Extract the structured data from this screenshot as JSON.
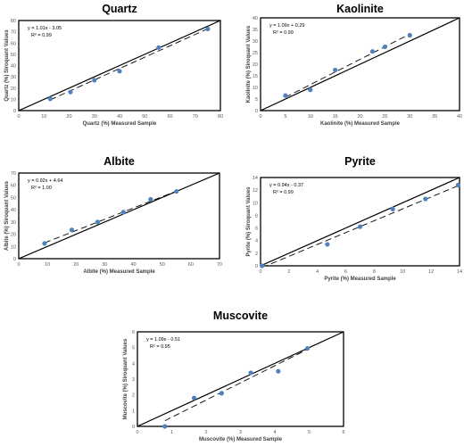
{
  "chart_data": [
    {
      "type": "scatter",
      "title": "Quartz",
      "xlabel": "Quartz (%) Measured Sample",
      "ylabel": "Quartz (%) Siroquant Values",
      "xlim": [
        0,
        80
      ],
      "ylim": [
        0,
        80
      ],
      "xticks": [
        0,
        10,
        20,
        30,
        40,
        50,
        60,
        70,
        80
      ],
      "yticks": [
        0,
        10,
        20,
        30,
        40,
        50,
        60,
        70,
        80
      ],
      "equation": "y = 1.01x - 3.05",
      "r2_label": "R² = 0.99",
      "trendline": {
        "slope": 1.01,
        "intercept": -3.05
      },
      "points": [
        {
          "x": 12.5,
          "y": 10.5
        },
        {
          "x": 20.5,
          "y": 16.5
        },
        {
          "x": 30,
          "y": 27
        },
        {
          "x": 40,
          "y": 35
        },
        {
          "x": 55.5,
          "y": 56
        },
        {
          "x": 75,
          "y": 72.5
        }
      ]
    },
    {
      "type": "scatter",
      "title": "Kaolinite",
      "xlabel": "Kaolinite (%) Measured Sample",
      "ylabel": "Kaolinite (%) Siroquant Values",
      "xlim": [
        0,
        40
      ],
      "ylim": [
        0,
        40
      ],
      "xticks": [
        0,
        5,
        10,
        15,
        20,
        25,
        30,
        35,
        40
      ],
      "yticks": [
        0,
        5,
        10,
        15,
        20,
        25,
        30,
        35,
        40
      ],
      "equation": "y = 1.09x + 0.29",
      "r2_label": "R² = 0.99",
      "trendline": {
        "slope": 1.09,
        "intercept": 0.29
      },
      "points": [
        {
          "x": 5,
          "y": 6.5
        },
        {
          "x": 10,
          "y": 9
        },
        {
          "x": 15,
          "y": 17.5
        },
        {
          "x": 22.5,
          "y": 25.5
        },
        {
          "x": 25,
          "y": 27.5
        },
        {
          "x": 30,
          "y": 32.5
        }
      ]
    },
    {
      "type": "scatter",
      "title": "Albite",
      "xlabel": "Albite (%) Measured Sample",
      "ylabel": "Albite (%) Siroquant Values",
      "xlim": [
        0,
        70
      ],
      "ylim": [
        0,
        70
      ],
      "xticks": [
        0,
        10,
        20,
        30,
        40,
        50,
        60,
        70
      ],
      "yticks": [
        0,
        10,
        20,
        30,
        40,
        50,
        60,
        70
      ],
      "equation": "y = 0.92x + 4.64",
      "r2_label": "R² = 1.00",
      "trendline": {
        "slope": 0.92,
        "intercept": 4.64
      },
      "points": [
        {
          "x": 9,
          "y": 12.5
        },
        {
          "x": 18.5,
          "y": 23.5
        },
        {
          "x": 27.5,
          "y": 30
        },
        {
          "x": 36.5,
          "y": 38
        },
        {
          "x": 46,
          "y": 48.5
        },
        {
          "x": 55,
          "y": 55
        }
      ]
    },
    {
      "type": "scatter",
      "title": "Pyrite",
      "xlabel": "Pyrite (%) Measured Sample",
      "ylabel": "Pyrite (%) Siroquant Values",
      "xlim": [
        0,
        14
      ],
      "ylim": [
        0,
        14
      ],
      "xticks": [
        0,
        2,
        4,
        6,
        8,
        10,
        12,
        14
      ],
      "yticks": [
        0,
        2,
        4,
        6,
        8,
        10,
        12,
        14
      ],
      "equation": "y = 0.94x - 0.37",
      "r2_label": "R² = 0.99",
      "trendline": {
        "slope": 0.94,
        "intercept": -0.37
      },
      "points": [
        {
          "x": 0.1,
          "y": 0
        },
        {
          "x": 4.7,
          "y": 3.4
        },
        {
          "x": 7,
          "y": 6.2
        },
        {
          "x": 9.3,
          "y": 9
        },
        {
          "x": 11.6,
          "y": 10.6
        },
        {
          "x": 13.9,
          "y": 12.8
        }
      ]
    },
    {
      "type": "scatter",
      "title": "Muscovite",
      "xlabel": "Muscovite (%) Measured Sample",
      "ylabel": "Muscovite (%) Siroquant Values",
      "xlim": [
        0,
        6
      ],
      "ylim": [
        0,
        6
      ],
      "xticks": [
        0,
        1,
        2,
        3,
        4,
        5,
        6
      ],
      "yticks": [
        0,
        1,
        2,
        3,
        4,
        5,
        6
      ],
      "equation": "y = 1.09x - 0.51",
      "r2_label": "R² = 0.95",
      "trendline": {
        "slope": 1.09,
        "intercept": -0.51
      },
      "points": [
        {
          "x": 0.8,
          "y": 0
        },
        {
          "x": 1.65,
          "y": 1.8
        },
        {
          "x": 2.45,
          "y": 2.1
        },
        {
          "x": 3.3,
          "y": 3.4
        },
        {
          "x": 4.1,
          "y": 3.5
        },
        {
          "x": 4.95,
          "y": 4.95
        }
      ]
    }
  ],
  "colors": {
    "marker": "#4f81bd",
    "axis": "#000000",
    "label": "#404040",
    "tick": "#595959"
  }
}
